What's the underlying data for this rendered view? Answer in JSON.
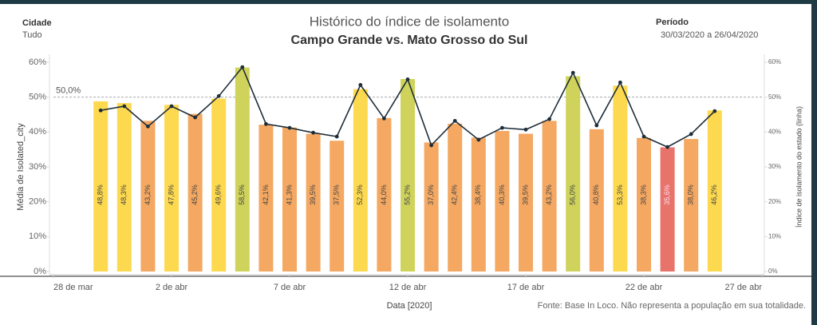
{
  "header": {
    "filter_label": "Cidade",
    "filter_value": "Tudo",
    "period_label": "Período",
    "period_value": "30/03/2020 a 26/04/2020"
  },
  "chart_data": {
    "type": "bar",
    "title": "Histórico do índice de isolamento",
    "subtitle": "Campo Grande vs. Mato Grosso do Sul",
    "x_label": "Data [2020]",
    "y_label": "Média de Isolated_city",
    "y2_label": "Índice de isolamento do estado (linha)",
    "source": "Fonte: Base In Loco. Não representa a população em sua totalidade.",
    "x": [
      "2020-03-30",
      "2020-03-31",
      "2020-04-01",
      "2020-04-02",
      "2020-04-03",
      "2020-04-04",
      "2020-04-05",
      "2020-04-06",
      "2020-04-07",
      "2020-04-08",
      "2020-04-09",
      "2020-04-10",
      "2020-04-11",
      "2020-04-12",
      "2020-04-13",
      "2020-04-14",
      "2020-04-15",
      "2020-04-16",
      "2020-04-17",
      "2020-04-18",
      "2020-04-19",
      "2020-04-20",
      "2020-04-21",
      "2020-04-22",
      "2020-04-23",
      "2020-04-24",
      "2020-04-25"
    ],
    "xlim": [
      "2020-03-28",
      "2020-04-27"
    ],
    "xticks": [
      {
        "value": "2020-03-28",
        "label": "28 de mar"
      },
      {
        "value": "2020-04-02",
        "label": "2 de abr"
      },
      {
        "value": "2020-04-07",
        "label": "7 de abr"
      },
      {
        "value": "2020-04-12",
        "label": "12 de abr"
      },
      {
        "value": "2020-04-17",
        "label": "17 de abr"
      },
      {
        "value": "2020-04-22",
        "label": "22 de abr"
      },
      {
        "value": "2020-04-27",
        "label": "27 de abr"
      }
    ],
    "series": [
      {
        "values": [
          48.8,
          48.3,
          43.2,
          47.8,
          45.2,
          49.6,
          58.5,
          42.1,
          41.3,
          39.5,
          37.5,
          52.3,
          44.0,
          55.2,
          37.0,
          42.4,
          38.4,
          40.3,
          39.5,
          43.2,
          56.0,
          40.8,
          53.3,
          38.3,
          35.6,
          38.0,
          46.2
        ],
        "value_labels": [
          "48,8%",
          "48,3%",
          "43,2%",
          "47,8%",
          "45,2%",
          "49,6%",
          "58,5%",
          "42,1%",
          "41,3%",
          "39,5%",
          "37,5%",
          "52,3%",
          "44,0%",
          "55,2%",
          "37,0%",
          "42,4%",
          "38,4%",
          "40,3%",
          "39,5%",
          "43,2%",
          "56,0%",
          "40,8%",
          "53,3%",
          "38,3%",
          "35,6%",
          "38,0%",
          "46,2%"
        ],
        "colors": [
          "#fdd94f",
          "#fdd94f",
          "#f4a862",
          "#fdd94f",
          "#f4a862",
          "#fdd94f",
          "#cfd35b",
          "#f4a862",
          "#f4a862",
          "#f4a862",
          "#f4a862",
          "#fdd94f",
          "#f4a862",
          "#cfd35b",
          "#f4a862",
          "#f4a862",
          "#f4a862",
          "#f4a862",
          "#f4a862",
          "#f4a862",
          "#cfd35b",
          "#f4a862",
          "#fdd94f",
          "#f4a862",
          "#e8736a",
          "#f4a862",
          "#fdd94f"
        ]
      },
      {
        "type": "line",
        "axis": "y2",
        "color": "#1d2d3a",
        "values": [
          46.2,
          47.4,
          41.6,
          47.4,
          44.2,
          50.3,
          58.6,
          42.3,
          41.2,
          39.8,
          38.7,
          53.5,
          43.9,
          55.1,
          36.2,
          43.2,
          37.8,
          41.2,
          40.7,
          43.7,
          57.0,
          41.9,
          54.2,
          38.7,
          35.7,
          39.4,
          46.0
        ]
      }
    ],
    "ylim": [
      0,
      60
    ],
    "y2lim": [
      0,
      60
    ],
    "yticks": [
      {
        "value": 0,
        "label": "0%"
      },
      {
        "value": 10,
        "label": "10%"
      },
      {
        "value": 20,
        "label": "20%"
      },
      {
        "value": 30,
        "label": "30%"
      },
      {
        "value": 40,
        "label": "40%"
      },
      {
        "value": 50,
        "label": "50%"
      },
      {
        "value": 60,
        "label": "60%"
      }
    ],
    "y2ticks": [
      {
        "value": 0,
        "label": "0%"
      },
      {
        "value": 10,
        "label": "10%"
      },
      {
        "value": 20,
        "label": "20%"
      },
      {
        "value": 30,
        "label": "30%"
      },
      {
        "value": 40,
        "label": "40%"
      },
      {
        "value": 50,
        "label": "50%"
      },
      {
        "value": 60,
        "label": "60%"
      }
    ],
    "reference_line": {
      "value": 50,
      "label": "50,0%"
    }
  }
}
